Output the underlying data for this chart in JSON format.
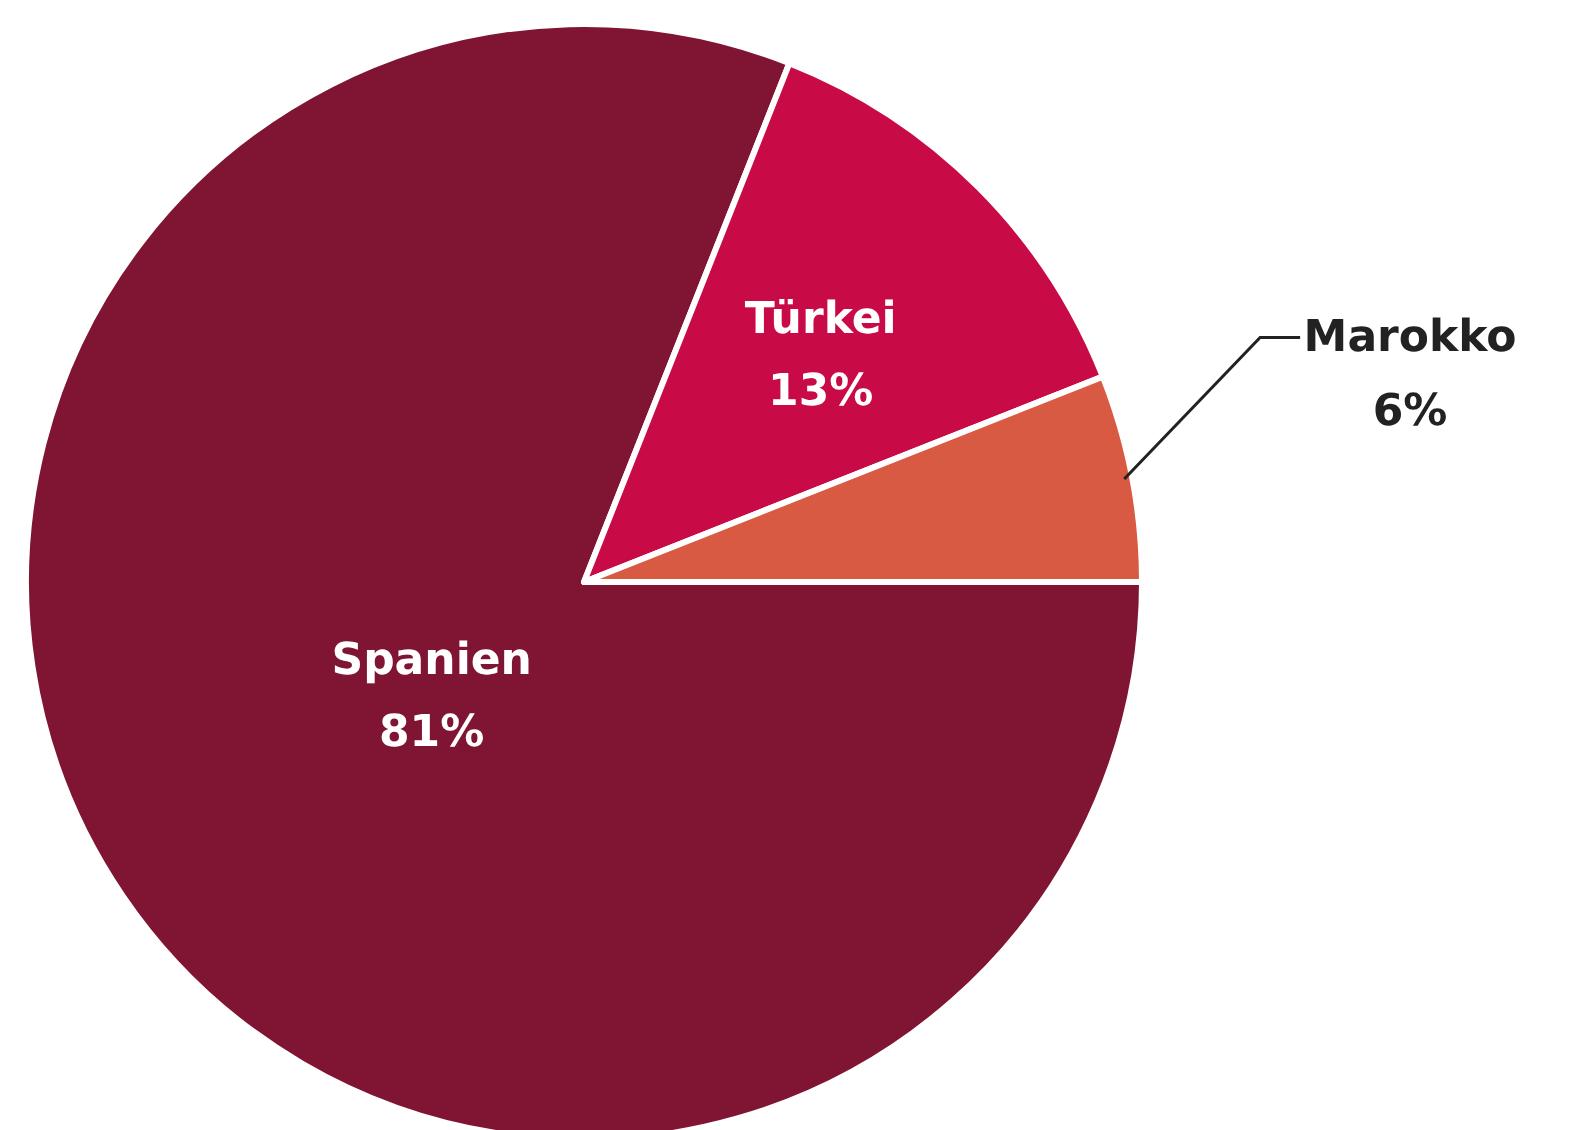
{
  "chart_data": {
    "type": "pie",
    "categories": [
      "Spanien",
      "Türkei",
      "Marokko"
    ],
    "values": [
      81,
      13,
      6
    ],
    "colors": [
      "#7f1433",
      "#c80a46",
      "#d95a42"
    ],
    "value_labels": [
      "81%",
      "13%",
      "6%"
    ]
  }
}
